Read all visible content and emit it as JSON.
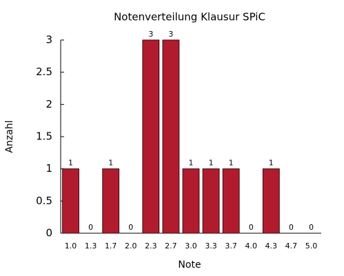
{
  "chart_data": {
    "type": "bar",
    "title": "Notenverteilung Klausur SPiC",
    "x_label": "Note",
    "y_label": "Anzahl",
    "categories": [
      "1.0",
      "1.3",
      "1.7",
      "2.0",
      "2.3",
      "2.7",
      "3.0",
      "3.3",
      "3.7",
      "4.0",
      "4.3",
      "4.7",
      "5.0"
    ],
    "values": [
      1,
      0,
      1,
      0,
      3,
      3,
      1,
      1,
      1,
      0,
      1,
      0,
      0
    ],
    "color": "#b01c2e",
    "ylim": [
      0,
      3
    ],
    "yticks": [
      0,
      0.5,
      1,
      1.5,
      2,
      2.5,
      3
    ],
    "grid": false
  }
}
